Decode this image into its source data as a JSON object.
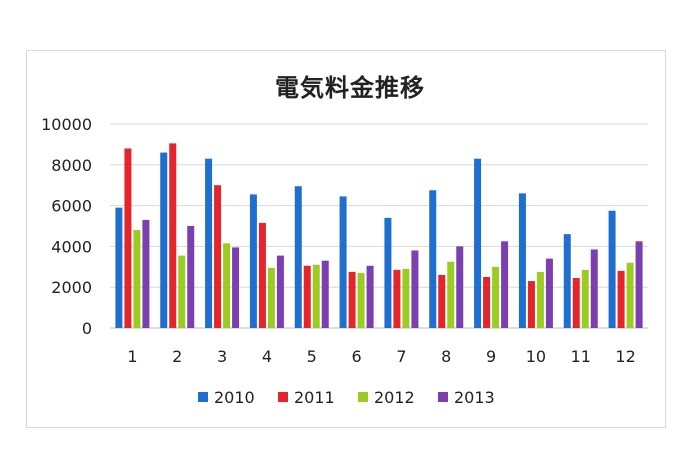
{
  "chart_data": {
    "type": "bar",
    "title": "電気料金推移",
    "categories": [
      "1",
      "2",
      "3",
      "4",
      "5",
      "6",
      "7",
      "8",
      "9",
      "10",
      "11",
      "12"
    ],
    "series": [
      {
        "name": "2010",
        "color": "#1f6fd0",
        "values": [
          5900,
          8600,
          8300,
          6550,
          6950,
          6450,
          5400,
          6750,
          8300,
          6600,
          4600,
          5750
        ]
      },
      {
        "name": "2011",
        "color": "#e4252c",
        "values": [
          8800,
          9050,
          7000,
          5150,
          3050,
          2750,
          2850,
          2600,
          2500,
          2300,
          2450,
          2800
        ]
      },
      {
        "name": "2012",
        "color": "#9ccc22",
        "values": [
          4800,
          3550,
          4150,
          2950,
          3100,
          2700,
          2900,
          3250,
          3000,
          2750,
          2850,
          3200
        ]
      },
      {
        "name": "2013",
        "color": "#7b3fb0",
        "values": [
          5300,
          5000,
          3950,
          3550,
          3300,
          3050,
          3800,
          4000,
          4250,
          3400,
          3850,
          4250
        ]
      }
    ],
    "yticks": [
      "0",
      "2000",
      "4000",
      "6000",
      "8000",
      "10000"
    ],
    "ylim": [
      0,
      10000
    ],
    "grid": true,
    "legend_position": "bottom"
  }
}
